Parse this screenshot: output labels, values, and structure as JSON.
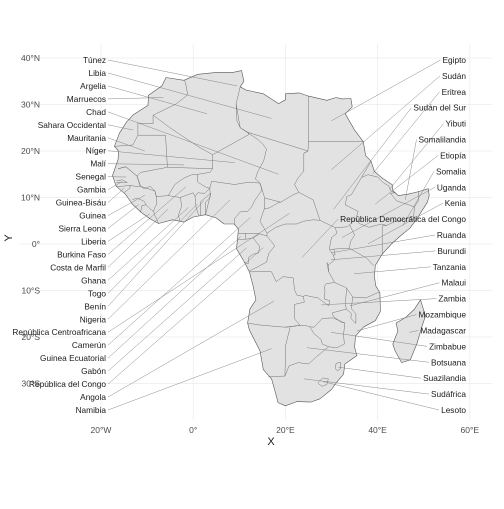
{
  "chart_data": {
    "type": "map",
    "xlabel": "X",
    "ylabel": "Y",
    "xlim": [
      -28,
      64
    ],
    "ylim": [
      -38,
      42
    ],
    "grid": true,
    "x_ticks": [
      {
        "value": -20,
        "label": "20°W"
      },
      {
        "value": 0,
        "label": "0°"
      },
      {
        "value": 20,
        "label": "20°E"
      },
      {
        "value": 40,
        "label": "40°E"
      },
      {
        "value": 60,
        "label": "60°E"
      }
    ],
    "y_ticks": [
      {
        "value": 40,
        "label": "40°N"
      },
      {
        "value": 30,
        "label": "30°N"
      },
      {
        "value": 20,
        "label": "20°N"
      },
      {
        "value": 10,
        "label": "10°N"
      },
      {
        "value": 0,
        "label": "0°"
      },
      {
        "value": -10,
        "label": "10°S"
      },
      {
        "value": -20,
        "label": "20°S"
      },
      {
        "value": -30,
        "label": "30°S"
      }
    ],
    "labels_left": [
      {
        "name": "Túnez",
        "lon": 9.5,
        "lat": 34.0
      },
      {
        "name": "Libia",
        "lon": 17.0,
        "lat": 27.0
      },
      {
        "name": "Argelia",
        "lon": 3.0,
        "lat": 28.0
      },
      {
        "name": "Marruecos",
        "lon": -6.5,
        "lat": 31.5
      },
      {
        "name": "Chad",
        "lon": 18.5,
        "lat": 15.0
      },
      {
        "name": "Sahara Occidental",
        "lon": -13.0,
        "lat": 24.5
      },
      {
        "name": "Mauritania",
        "lon": -10.5,
        "lat": 20.0
      },
      {
        "name": "Níger",
        "lon": 9.0,
        "lat": 17.5
      },
      {
        "name": "Malí",
        "lon": -2.0,
        "lat": 17.0
      },
      {
        "name": "Senegal",
        "lon": -14.5,
        "lat": 14.4
      },
      {
        "name": "Gambia",
        "lon": -15.4,
        "lat": 13.45
      },
      {
        "name": "Guinea-Bisáu",
        "lon": -15.0,
        "lat": 12.0
      },
      {
        "name": "Guinea",
        "lon": -10.5,
        "lat": 10.5
      },
      {
        "name": "Sierra Leona",
        "lon": -11.8,
        "lat": 8.5
      },
      {
        "name": "Liberia",
        "lon": -9.4,
        "lat": 6.5
      },
      {
        "name": "Burkina Faso",
        "lon": -1.6,
        "lat": 12.3
      },
      {
        "name": "Costa de Marfil",
        "lon": -5.5,
        "lat": 7.5
      },
      {
        "name": "Ghana",
        "lon": -1.0,
        "lat": 7.9
      },
      {
        "name": "Togo",
        "lon": 0.9,
        "lat": 8.6
      },
      {
        "name": "Benín",
        "lon": 2.3,
        "lat": 9.3
      },
      {
        "name": "Nigeria",
        "lon": 8.0,
        "lat": 9.5
      },
      {
        "name": "República Centroafricana",
        "lon": 20.9,
        "lat": 6.6
      },
      {
        "name": "Camerún",
        "lon": 12.4,
        "lat": 5.7
      },
      {
        "name": "Guinea Ecuatorial",
        "lon": 10.3,
        "lat": 1.6
      },
      {
        "name": "Gabón",
        "lon": 11.6,
        "lat": -0.8
      },
      {
        "name": "República del Congo",
        "lon": 15.2,
        "lat": -0.8
      },
      {
        "name": "Angola",
        "lon": 17.5,
        "lat": -12.3
      },
      {
        "name": "Namibia",
        "lon": 17.0,
        "lat": -22.5
      }
    ],
    "labels_right": [
      {
        "name": "Egipto",
        "lon": 30.0,
        "lat": 26.5
      },
      {
        "name": "Sudán",
        "lon": 30.0,
        "lat": 16.0
      },
      {
        "name": "Eritrea",
        "lon": 39.0,
        "lat": 15.2
      },
      {
        "name": "Sudán del Sur",
        "lon": 30.5,
        "lat": 7.5
      },
      {
        "name": "Yibuti",
        "lon": 42.6,
        "lat": 11.8
      },
      {
        "name": "Somalilandia",
        "lon": 46.0,
        "lat": 9.5
      },
      {
        "name": "Etiopía",
        "lon": 39.5,
        "lat": 8.6
      },
      {
        "name": "Somalia",
        "lon": 45.5,
        "lat": 4.0
      },
      {
        "name": "Uganda",
        "lon": 32.3,
        "lat": 1.4
      },
      {
        "name": "Kenia",
        "lon": 37.9,
        "lat": 0.0
      },
      {
        "name": "República Democrática del Congo",
        "lon": 23.6,
        "lat": -2.9
      },
      {
        "name": "Ruanda",
        "lon": 29.9,
        "lat": -1.9
      },
      {
        "name": "Burundi",
        "lon": 29.9,
        "lat": -3.4
      },
      {
        "name": "Tanzania",
        "lon": 34.9,
        "lat": -6.4
      },
      {
        "name": "Malaui",
        "lon": 34.0,
        "lat": -13.3
      },
      {
        "name": "Zambia",
        "lon": 27.8,
        "lat": -13.1
      },
      {
        "name": "Mozambique",
        "lon": 35.5,
        "lat": -18.7
      },
      {
        "name": "Madagascar",
        "lon": 46.9,
        "lat": -19.0
      },
      {
        "name": "Zimbabue",
        "lon": 29.9,
        "lat": -19.0
      },
      {
        "name": "Botsuana",
        "lon": 24.7,
        "lat": -22.3
      },
      {
        "name": "Suazilandia",
        "lon": 31.5,
        "lat": -26.5
      },
      {
        "name": "Sudáfrica",
        "lon": 24.0,
        "lat": -29.0
      },
      {
        "name": "Lesoto",
        "lon": 28.2,
        "lat": -29.6
      }
    ]
  }
}
